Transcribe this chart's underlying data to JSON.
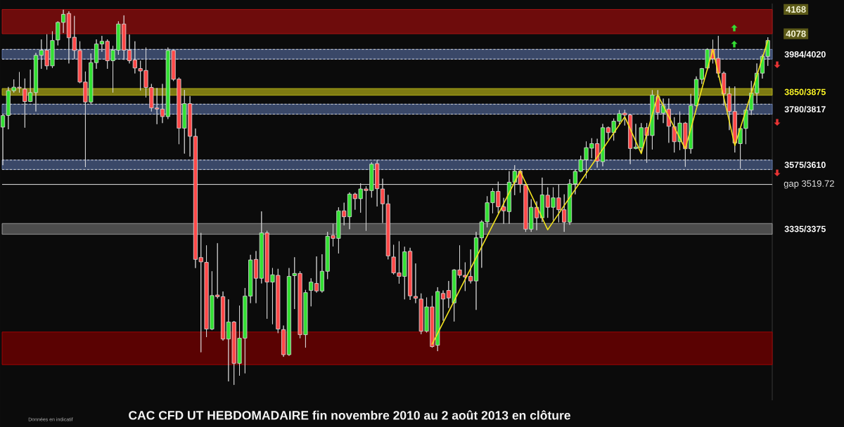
{
  "chart_data": {
    "type": "candlestick",
    "title": "CAC CFD UT HEBDOMADAIRE fin novembre 2010 au 2 août 2013 en clôture",
    "annotations": [
      "Données en indicatif"
    ],
    "categories": [
      null,
      null,
      null,
      null,
      null,
      null,
      null,
      null,
      null,
      null,
      null,
      null,
      null,
      null,
      null,
      null,
      null,
      null,
      null,
      null,
      null,
      null,
      null,
      null,
      null,
      null,
      null,
      null,
      null,
      null,
      null,
      null,
      null,
      null,
      null,
      null,
      null,
      null,
      null,
      null,
      null,
      null,
      null,
      null,
      null,
      null,
      null,
      null,
      null,
      null,
      null,
      null,
      null,
      null,
      null,
      null,
      null,
      null,
      null,
      null,
      null,
      null,
      null,
      null,
      null,
      null,
      null,
      null,
      null,
      null,
      null,
      null,
      null,
      null,
      null,
      null,
      null,
      null,
      null,
      null,
      null,
      null,
      null,
      null,
      null,
      null,
      null,
      null,
      null,
      null,
      null,
      null,
      null,
      null,
      null,
      null,
      null,
      null,
      null,
      null,
      null,
      null,
      null,
      null,
      null,
      null,
      null,
      null,
      null,
      null,
      null,
      null,
      null,
      null,
      null,
      null,
      null,
      null,
      null,
      null,
      null,
      null,
      null,
      null,
      null,
      null,
      null,
      null,
      null,
      null,
      null,
      null,
      null,
      null,
      null,
      null,
      null,
      null,
      null,
      null
    ],
    "ohlc": [
      [
        3732,
        3778,
        3591,
        3775
      ],
      [
        3775,
        3881,
        3724,
        3867
      ],
      [
        3867,
        3909,
        3860,
        3880
      ],
      [
        3880,
        3936,
        3860,
        3877
      ],
      [
        3873,
        3912,
        3730,
        3827
      ],
      [
        3827,
        3945,
        3825,
        3860
      ],
      [
        3860,
        4007,
        3790,
        3998
      ],
      [
        3998,
        4057,
        3948,
        4017
      ],
      [
        4017,
        4076,
        3945,
        3959
      ],
      [
        3959,
        4087,
        3951,
        4053
      ],
      [
        4055,
        4124,
        4035,
        4120
      ],
      [
        4120,
        4167,
        4081,
        4150
      ],
      [
        4153,
        4161,
        3968,
        4063
      ],
      [
        4065,
        4144,
        3985,
        4016
      ],
      [
        4016,
        4050,
        3895,
        3899
      ],
      [
        3899,
        3938,
        3584,
        3825
      ],
      [
        3825,
        4005,
        3816,
        3971
      ],
      [
        3971,
        4057,
        3948,
        4040
      ],
      [
        4040,
        4070,
        4011,
        4050
      ],
      [
        4050,
        4057,
        3948,
        3978
      ],
      [
        3978,
        4033,
        3860,
        4017
      ],
      [
        4017,
        4124,
        4000,
        4114
      ],
      [
        4114,
        4146,
        3981,
        4017
      ],
      [
        4017,
        4075,
        3968,
        3978
      ],
      [
        3981,
        4050,
        3931,
        3951
      ],
      [
        3949,
        3978,
        3868,
        3940
      ],
      [
        3942,
        4027,
        3842,
        3879
      ],
      [
        3879,
        3892,
        3790,
        3803
      ],
      [
        3803,
        3877,
        3743,
        3799
      ],
      [
        3799,
        3892,
        3747,
        3771
      ],
      [
        3771,
        4027,
        3762,
        4016
      ],
      [
        4016,
        4018,
        3903,
        3909
      ],
      [
        3910,
        3916,
        3669,
        3728
      ],
      [
        3728,
        3870,
        3634,
        3819
      ],
      [
        3819,
        3847,
        3623,
        3698
      ],
      [
        3698,
        3727,
        3210,
        3242
      ],
      [
        3249,
        3340,
        2898,
        3233
      ],
      [
        3231,
        3294,
        2954,
        2984
      ],
      [
        2984,
        3198,
        2980,
        3108
      ],
      [
        3110,
        3302,
        3097,
        3104
      ],
      [
        3104,
        3123,
        2941,
        2947
      ],
      [
        2947,
        3094,
        2790,
        3010
      ],
      [
        3010,
        3014,
        2777,
        2857
      ],
      [
        2857,
        3071,
        2811,
        2950
      ],
      [
        2950,
        3136,
        2820,
        3106
      ],
      [
        3106,
        3259,
        3080,
        3240
      ],
      [
        3242,
        3273,
        3080,
        3172
      ],
      [
        3172,
        3420,
        3153,
        3340
      ],
      [
        3340,
        3348,
        3022,
        3158
      ],
      [
        3158,
        3210,
        3002,
        3185
      ],
      [
        3183,
        3207,
        2969,
        2984
      ],
      [
        2982,
        2997,
        2881,
        2889
      ],
      [
        2889,
        3210,
        2885,
        3179
      ],
      [
        3182,
        3250,
        3058,
        3190
      ],
      [
        3190,
        3198,
        2950,
        2963
      ],
      [
        2963,
        3129,
        2915,
        3119
      ],
      [
        3127,
        3172,
        3068,
        3158
      ],
      [
        3153,
        3253,
        3119,
        3125
      ],
      [
        3125,
        3261,
        3119,
        3198
      ],
      [
        3198,
        3344,
        3169,
        3328
      ],
      [
        3331,
        3374,
        3290,
        3320
      ],
      [
        3320,
        3435,
        3264,
        3422
      ],
      [
        3422,
        3452,
        3368,
        3400
      ],
      [
        3400,
        3490,
        3354,
        3484
      ],
      [
        3484,
        3489,
        3426,
        3467
      ],
      [
        3467,
        3524,
        3415,
        3503
      ],
      [
        3503,
        3513,
        3348,
        3497
      ],
      [
        3497,
        3602,
        3471,
        3595
      ],
      [
        3597,
        3611,
        3438,
        3504
      ],
      [
        3503,
        3541,
        3377,
        3448
      ],
      [
        3448,
        3481,
        3242,
        3255
      ],
      [
        3251,
        3296,
        3186,
        3192
      ],
      [
        3192,
        3309,
        3152,
        3179
      ],
      [
        3179,
        3289,
        3094,
        3270
      ],
      [
        3272,
        3285,
        3092,
        3107
      ],
      [
        3105,
        3227,
        3080,
        3098
      ],
      [
        3095,
        3116,
        2965,
        2976
      ],
      [
        2976,
        3101,
        2971,
        3066
      ],
      [
        3066,
        3107,
        2915,
        2919
      ],
      [
        2924,
        3139,
        2902,
        3123
      ],
      [
        3116,
        3127,
        3015,
        3095
      ],
      [
        3127,
        3162,
        3062,
        3099
      ],
      [
        3081,
        3206,
        3012,
        3203
      ],
      [
        3203,
        3294,
        3173,
        3183
      ],
      [
        3183,
        3231,
        3125,
        3177
      ],
      [
        3179,
        3279,
        3153,
        3162
      ],
      [
        3162,
        3344,
        3055,
        3322
      ],
      [
        3322,
        3387,
        3211,
        3381
      ],
      [
        3381,
        3476,
        3361,
        3452
      ],
      [
        3452,
        3506,
        3413,
        3494
      ],
      [
        3494,
        3530,
        3413,
        3437
      ],
      [
        3437,
        3470,
        3374,
        3422
      ],
      [
        3419,
        3569,
        3374,
        3528
      ],
      [
        3528,
        3591,
        3480,
        3569
      ],
      [
        3569,
        3575,
        3489,
        3520
      ],
      [
        3517,
        3520,
        3344,
        3354
      ],
      [
        3354,
        3465,
        3344,
        3435
      ],
      [
        3435,
        3457,
        3350,
        3396
      ],
      [
        3396,
        3545,
        3380,
        3481
      ],
      [
        3480,
        3509,
        3396,
        3435
      ],
      [
        3435,
        3509,
        3387,
        3470
      ],
      [
        3470,
        3519,
        3379,
        3426
      ],
      [
        3426,
        3483,
        3344,
        3380
      ],
      [
        3380,
        3539,
        3370,
        3522
      ],
      [
        3522,
        3574,
        3483,
        3568
      ],
      [
        3568,
        3626,
        3565,
        3611
      ],
      [
        3611,
        3679,
        3542,
        3656
      ],
      [
        3654,
        3691,
        3617,
        3671
      ],
      [
        3671,
        3689,
        3582,
        3606
      ],
      [
        3604,
        3744,
        3587,
        3730
      ],
      [
        3730,
        3734,
        3686,
        3712
      ],
      [
        3712,
        3764,
        3682,
        3754
      ],
      [
        3754,
        3795,
        3743,
        3782
      ],
      [
        3784,
        3796,
        3738,
        3777
      ],
      [
        3777,
        3779,
        3595,
        3653
      ],
      [
        3653,
        3744,
        3650,
        3658
      ],
      [
        3656,
        3747,
        3638,
        3730
      ],
      [
        3730,
        3747,
        3600,
        3701
      ],
      [
        3701,
        3869,
        3649,
        3851
      ],
      [
        3846,
        3869,
        3760,
        3786
      ],
      [
        3784,
        3838,
        3747,
        3812
      ],
      [
        3799,
        3838,
        3674,
        3735
      ],
      [
        3734,
        3769,
        3638,
        3678
      ],
      [
        3678,
        3790,
        3647,
        3747
      ],
      [
        3747,
        3751,
        3585,
        3652
      ],
      [
        3652,
        3855,
        3634,
        3812
      ],
      [
        3812,
        3920,
        3808,
        3909
      ],
      [
        3909,
        3951,
        3892,
        3949
      ],
      [
        3951,
        4024,
        3942,
        4020
      ],
      [
        4020,
        4056,
        3968,
        3985
      ],
      [
        3987,
        4070,
        3916,
        3932
      ],
      [
        3932,
        3938,
        3812,
        3855
      ],
      [
        3855,
        3883,
        3721,
        3790
      ],
      [
        3790,
        3883,
        3638,
        3673
      ],
      [
        3671,
        3729,
        3578,
        3727
      ],
      [
        3727,
        3799,
        3669,
        3795
      ],
      [
        3795,
        3903,
        3777,
        3858
      ],
      [
        3858,
        3968,
        3820,
        3932
      ],
      [
        3932,
        4001,
        3912,
        3994
      ],
      [
        3994,
        4065,
        3959,
        4053
      ]
    ],
    "colors": [
      "#33e033",
      "#33e033",
      "#33e033",
      "#ff4848",
      "#ff4848",
      "#33e033",
      "#33e033",
      "#33e033",
      "#ff4848",
      "#33e033",
      "#33e033",
      "#33e033",
      "#ff4848",
      "#ff4848",
      "#ff4848",
      "#ff4848",
      "#33e033",
      "#33e033",
      "#33e033",
      "#ff4848",
      "#33e033",
      "#33e033",
      "#ff4848",
      "#ff4848",
      "#ff4848",
      "#ff4848",
      "#ff4848",
      "#ff4848",
      "#ff4848",
      "#ff4848",
      "#33e033",
      "#ff4848",
      "#ff4848",
      "#33e033",
      "#ff4848",
      "#ff4848",
      "#ff4848",
      "#ff4848",
      "#33e033",
      "#ff4848",
      "#ff4848",
      "#33e033",
      "#ff4848",
      "#33e033",
      "#33e033",
      "#33e033",
      "#ff4848",
      "#33e033",
      "#ff4848",
      "#33e033",
      "#ff4848",
      "#ff4848",
      "#33e033",
      "#33e033",
      "#ff4848",
      "#33e033",
      "#33e033",
      "#ff4848",
      "#33e033",
      "#33e033",
      "#ff4848",
      "#33e033",
      "#ff4848",
      "#33e033",
      "#ff4848",
      "#33e033",
      "#ff4848",
      "#33e033",
      "#ff4848",
      "#ff4848",
      "#ff4848",
      "#ff4848",
      "#ff4848",
      "#33e033",
      "#ff4848",
      "#ff4848",
      "#ff4848",
      "#33e033",
      "#ff4848",
      "#33e033",
      "#ff4848",
      "#ff4848",
      "#33e033",
      "#ff4848",
      "#ff4848",
      "#ff4848",
      "#33e033",
      "#33e033",
      "#33e033",
      "#33e033",
      "#ff4848",
      "#ff4848",
      "#33e033",
      "#33e033",
      "#ff4848",
      "#ff4848",
      "#33e033",
      "#ff4848",
      "#33e033",
      "#ff4848",
      "#33e033",
      "#ff4848",
      "#ff4848",
      "#33e033",
      "#33e033",
      "#33e033",
      "#33e033",
      "#33e033",
      "#ff4848",
      "#33e033",
      "#ff4848",
      "#33e033",
      "#33e033",
      "#ff4848",
      "#ff4848",
      "#33e033",
      "#33e033",
      "#ff4848",
      "#33e033",
      "#ff4848",
      "#33e033",
      "#ff4848",
      "#ff4848",
      "#33e033",
      "#ff4848",
      "#33e033",
      "#33e033",
      "#33e033",
      "#33e033",
      "#ff4848",
      "#ff4848",
      "#ff4848",
      "#ff4848",
      "#ff4848",
      "#33e033",
      "#33e033",
      "#33e033",
      "#33e033",
      "#33e033",
      "#33e033"
    ],
    "series": [
      {
        "type": "line",
        "color": "#f2e21e",
        "values": [
          null,
          null,
          null,
          null,
          null,
          null,
          null,
          null,
          null,
          null,
          null,
          null,
          null,
          null,
          null,
          null,
          null,
          null,
          null,
          null,
          null,
          null,
          null,
          null,
          null,
          null,
          null,
          null,
          null,
          null,
          null,
          null,
          null,
          null,
          null,
          null,
          null,
          null,
          null,
          null,
          null,
          null,
          null,
          null,
          null,
          null,
          null,
          null,
          null,
          null,
          null,
          null,
          null,
          null,
          null,
          null,
          null,
          null,
          null,
          null,
          null,
          null,
          null,
          null,
          null,
          null,
          null,
          null,
          null,
          null,
          null,
          null,
          null,
          null,
          null,
          null,
          null,
          null,
          2928,
          null,
          null,
          null,
          null,
          null,
          null,
          null,
          null,
          null,
          null,
          null,
          null,
          null,
          null,
          null,
          3569,
          null,
          null,
          null,
          null,
          3352,
          null,
          null,
          null,
          null,
          null,
          null,
          null,
          null,
          null,
          null,
          null,
          null,
          null,
          3770,
          null,
          null,
          3634,
          null,
          null,
          3851,
          null,
          null,
          null,
          null,
          3652,
          null,
          null,
          null,
          null,
          4020,
          null,
          null,
          null,
          3664,
          null,
          null,
          null,
          null,
          null,
          4053
        ]
      }
    ],
    "ylim": [
      2720,
      4190
    ],
    "yticks": [
      4168,
      4078,
      {
        "value": 3519.72,
        "label": "gap 3519.72"
      }
    ],
    "tick_labels": "y",
    "bands": [
      {
        "axis": "y",
        "from": 4078,
        "to": 4168,
        "color": "#6e0c0c"
      },
      {
        "axis": "y",
        "from": 3984,
        "to": 4020,
        "label": "3984/4020",
        "color": "#3a4868"
      },
      {
        "axis": "y",
        "from": 3850,
        "to": 3875,
        "label": "3850/3875",
        "color": "#7d7a12"
      },
      {
        "axis": "y",
        "from": 3780,
        "to": 3817,
        "label": "3780/3817",
        "color": "#3a4868"
      },
      {
        "axis": "y",
        "from": 3575,
        "to": 3610,
        "label": "3575/3610",
        "color": "#3a4868"
      },
      {
        "axis": "y",
        "from": 3335,
        "to": 3375,
        "label": "3335/3375",
        "color": "#4c4c4c"
      },
      {
        "axis": "y",
        "from": 2852,
        "to": 2973,
        "color": "#5a0202"
      }
    ],
    "ref_lines": [
      {
        "axis": "y",
        "value": 4020,
        "color": "#d0d0d0",
        "line_style": "dashed"
      },
      {
        "axis": "y",
        "value": 3984,
        "color": "#d0d0d0",
        "line_style": "dashed"
      },
      {
        "axis": "y",
        "value": 3817,
        "color": "#d0d0d0",
        "line_style": "dashed"
      },
      {
        "axis": "y",
        "value": 3780,
        "color": "#d0d0d0",
        "line_style": "dashed"
      },
      {
        "axis": "y",
        "value": 3610,
        "color": "#d0d0d0",
        "line_style": "dashed"
      },
      {
        "axis": "y",
        "value": 3575,
        "color": "#d0d0d0",
        "line_style": "dashed"
      },
      {
        "axis": "y",
        "value": 3519.72,
        "color": "#e6e6e6"
      }
    ]
  }
}
